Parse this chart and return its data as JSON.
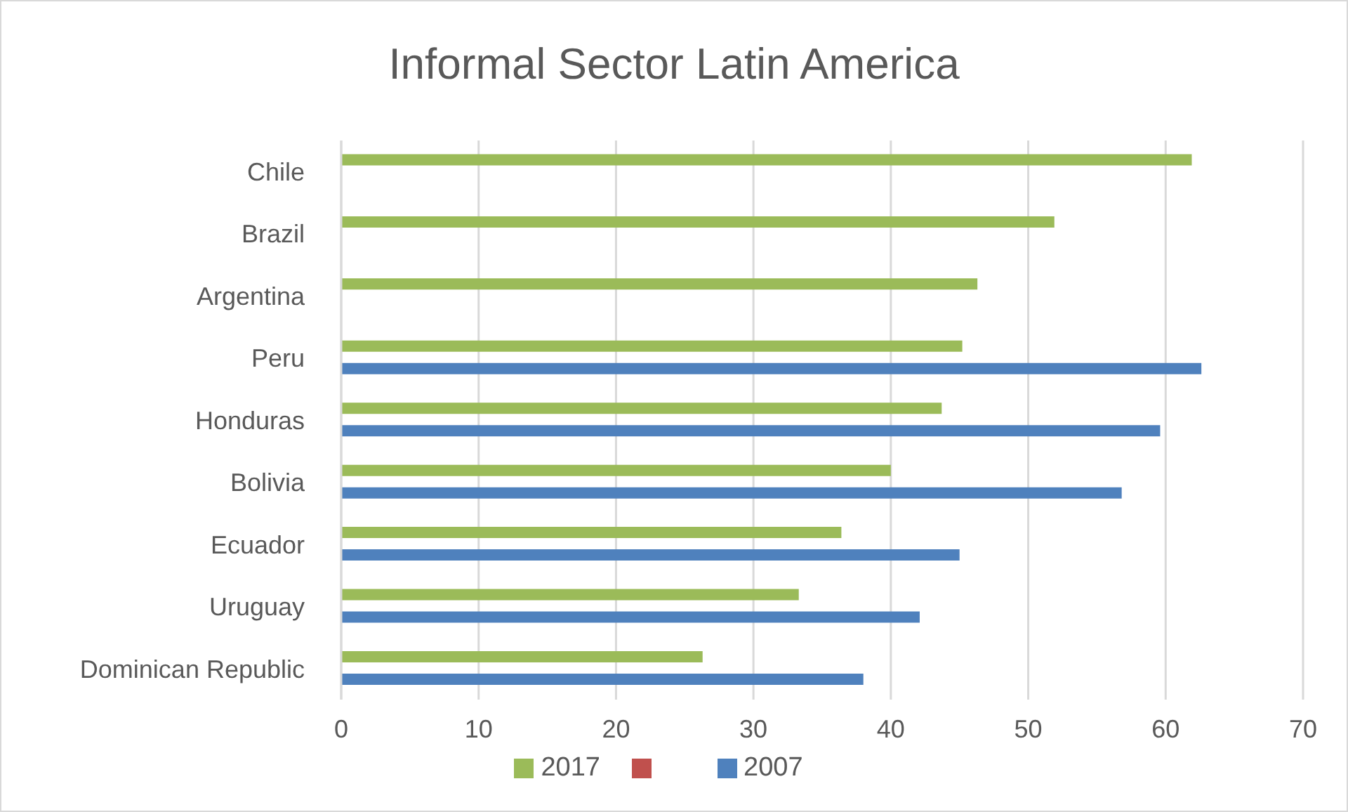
{
  "chart_data": {
    "type": "bar",
    "orientation": "horizontal",
    "title": "Informal Sector Latin America",
    "categories": [
      "Chile",
      "Brazil",
      "Argentina",
      "Peru",
      "Honduras",
      "Bolivia ",
      "Ecuador",
      "Uruguay",
      "Dominican Republic"
    ],
    "series": [
      {
        "name": "2017",
        "color": "#9bbb59",
        "values": [
          61.9,
          51.9,
          46.3,
          45.2,
          43.7,
          40.0,
          36.4,
          33.3,
          26.3
        ]
      },
      {
        "color": "#c0504d",
        "values": [
          null,
          null,
          null,
          null,
          null,
          null,
          null,
          null,
          null
        ]
      },
      {
        "name": "2007",
        "color": "#4f81bd",
        "values": [
          null,
          null,
          null,
          62.6,
          59.6,
          56.8,
          45.0,
          42.1,
          38.0
        ]
      }
    ],
    "xlim": [
      0,
      70
    ],
    "xticks": [
      0,
      10,
      20,
      30,
      40,
      50,
      60,
      70
    ],
    "grid": "x",
    "legend": "bottom"
  }
}
